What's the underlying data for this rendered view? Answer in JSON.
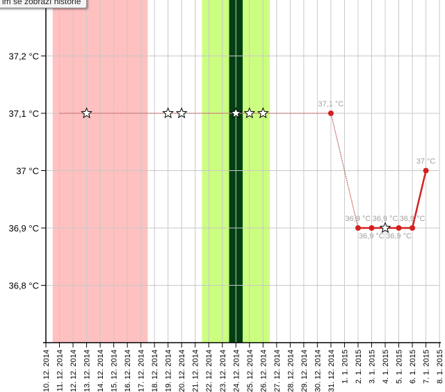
{
  "tooltip": "im se zobrazí historie",
  "chart_data": {
    "type": "line",
    "ylim": [
      36.7,
      37.3
    ],
    "yticks": [
      "37,2 °C",
      "37,1 °C",
      "37 °C",
      "36,9 °C",
      "36,8 °C"
    ],
    "ytick_values": [
      37.2,
      37.1,
      37.0,
      36.9,
      36.8
    ],
    "grid": true,
    "x_categories": [
      "10. 12. 2014",
      "11. 12. 2014",
      "12. 12. 2014",
      "13. 12. 2014",
      "14. 12. 2014",
      "15. 12. 2014",
      "16. 12. 2014",
      "17. 12. 2014",
      "18. 12. 2014",
      "19. 12. 2014",
      "20. 12. 2014",
      "21. 12. 2014",
      "22. 12. 2014",
      "23. 12. 2014",
      "24. 12. 2014",
      "25. 12. 2014",
      "26. 12. 2014",
      "27. 12. 2014",
      "28. 12. 2014",
      "29. 12. 2014",
      "30. 12. 2014",
      "31. 12. 2014",
      "1. 1. 2015",
      "2. 1. 2015",
      "3. 1. 2015",
      "4. 1. 2015",
      "5. 1. 2015",
      "6. 1. 2015",
      "7. 1. 2015",
      "8. 1. 2015"
    ],
    "bands": [
      {
        "from": "11. 12. 2014",
        "to": "17. 12. 2014",
        "color": "#ffc0c0"
      },
      {
        "from": "22. 12. 2014",
        "to": "26. 12. 2014",
        "color": "#ccff80"
      },
      {
        "from": "24. 12. 2014",
        "to": "24. 12. 2014",
        "color": "#004010"
      }
    ],
    "historic_series": {
      "color": "#c06060",
      "points": [
        {
          "x": "11. 12. 2014",
          "y": 37.1
        },
        {
          "x": "13. 12. 2014",
          "y": 37.1,
          "marker": "star"
        },
        {
          "x": "19. 12. 2014",
          "y": 37.1,
          "marker": "star"
        },
        {
          "x": "20. 12. 2014",
          "y": 37.1,
          "marker": "star"
        },
        {
          "x": "24. 12. 2014",
          "y": 37.1,
          "marker": "star"
        },
        {
          "x": "25. 12. 2014",
          "y": 37.1,
          "marker": "star"
        },
        {
          "x": "26. 12. 2014",
          "y": 37.1,
          "marker": "star"
        },
        {
          "x": "31. 12. 2014",
          "y": 37.1,
          "marker": "dot",
          "label": "37,1 °C"
        },
        {
          "x": "2. 1. 2015",
          "y": 36.9
        }
      ]
    },
    "series": {
      "color": "#d42020",
      "points": [
        {
          "x": "2. 1. 2015",
          "y": 36.9,
          "marker": "dot",
          "label": "36,9 °C"
        },
        {
          "x": "3. 1. 2015",
          "y": 36.9,
          "marker": "dot",
          "label": "36,9 °C"
        },
        {
          "x": "4. 1. 2015",
          "y": 36.9,
          "marker": "star",
          "label": "36,9 °C"
        },
        {
          "x": "5. 1. 2015",
          "y": 36.9,
          "marker": "dot",
          "label": "36,9 °C"
        },
        {
          "x": "6. 1. 2015",
          "y": 36.9,
          "marker": "dot",
          "label": "36,9 °C"
        },
        {
          "x": "7. 1. 2015",
          "y": 37.0,
          "marker": "dot",
          "label": "37 °C"
        }
      ]
    }
  }
}
